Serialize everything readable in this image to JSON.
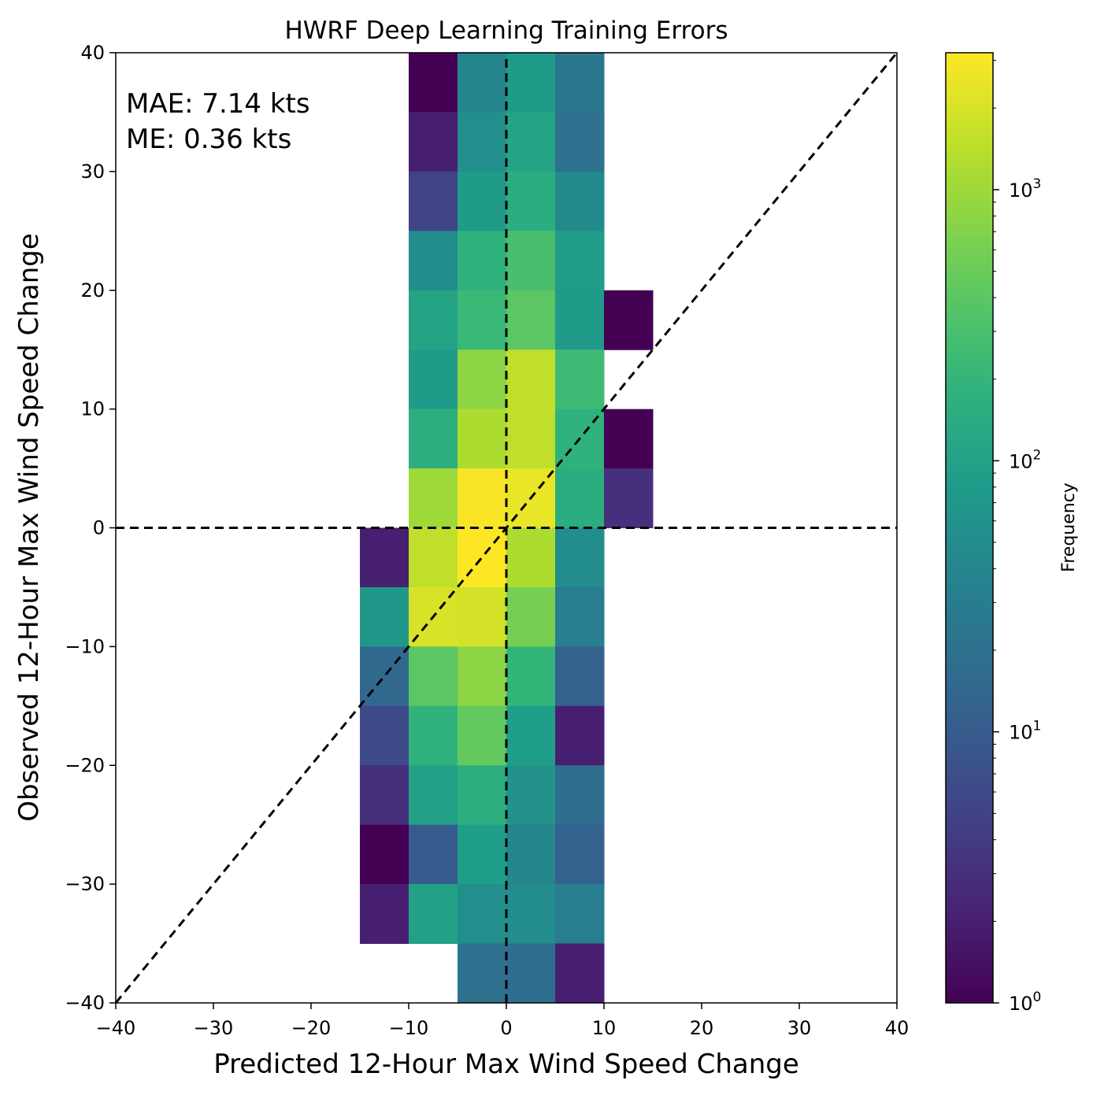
{
  "chart_data": {
    "type": "heatmap",
    "title": "HWRF Deep Learning Training Errors",
    "xlabel": "Predicted 12-Hour Max Wind Speed Change",
    "ylabel": "Observed 12-Hour Max Wind Speed Change",
    "xlim": [
      -40,
      40
    ],
    "ylim": [
      -40,
      40
    ],
    "xticks": [
      -40,
      -30,
      -20,
      -10,
      0,
      10,
      20,
      30,
      40
    ],
    "yticks": [
      -40,
      -30,
      -20,
      -10,
      0,
      10,
      20,
      30,
      40
    ],
    "xtick_labels": [
      "−40",
      "−30",
      "−20",
      "−10",
      "0",
      "10",
      "20",
      "30",
      "40"
    ],
    "ytick_labels": [
      "−40",
      "−30",
      "−20",
      "−10",
      "0",
      "10",
      "20",
      "30",
      "40"
    ],
    "grid": false,
    "reference_lines": [
      "y=0",
      "x=0",
      "y=x"
    ],
    "annotations": [
      "MAE:  7.14 kts",
      "ME:  0.36 kts"
    ],
    "colorbar": {
      "label": "Frequency",
      "scale": "log",
      "range": [
        1,
        3200
      ],
      "colormap": "viridis",
      "tick_exponents": [
        0,
        1,
        2,
        3
      ]
    },
    "bins": [
      {
        "x": [
          -10,
          -5
        ],
        "y": [
          35,
          40
        ],
        "freq": 1
      },
      {
        "x": [
          -5,
          0
        ],
        "y": [
          35,
          40
        ],
        "freq": 40
      },
      {
        "x": [
          0,
          5
        ],
        "y": [
          35,
          40
        ],
        "freq": 80
      },
      {
        "x": [
          5,
          10
        ],
        "y": [
          35,
          40
        ],
        "freq": 25
      },
      {
        "x": [
          -10,
          -5
        ],
        "y": [
          30,
          35
        ],
        "freq": 2
      },
      {
        "x": [
          -5,
          0
        ],
        "y": [
          30,
          35
        ],
        "freq": 55
      },
      {
        "x": [
          0,
          5
        ],
        "y": [
          30,
          35
        ],
        "freq": 110
      },
      {
        "x": [
          5,
          10
        ],
        "y": [
          30,
          35
        ],
        "freq": 20
      },
      {
        "x": [
          -10,
          -5
        ],
        "y": [
          25,
          30
        ],
        "freq": 5
      },
      {
        "x": [
          -5,
          0
        ],
        "y": [
          25,
          30
        ],
        "freq": 80
      },
      {
        "x": [
          0,
          5
        ],
        "y": [
          25,
          30
        ],
        "freq": 150
      },
      {
        "x": [
          5,
          10
        ],
        "y": [
          25,
          30
        ],
        "freq": 45
      },
      {
        "x": [
          -10,
          -5
        ],
        "y": [
          20,
          25
        ],
        "freq": 50
      },
      {
        "x": [
          -5,
          0
        ],
        "y": [
          20,
          25
        ],
        "freq": 180
      },
      {
        "x": [
          0,
          5
        ],
        "y": [
          20,
          25
        ],
        "freq": 300
      },
      {
        "x": [
          5,
          10
        ],
        "y": [
          20,
          25
        ],
        "freq": 85
      },
      {
        "x": [
          -10,
          -5
        ],
        "y": [
          15,
          20
        ],
        "freq": 110
      },
      {
        "x": [
          -5,
          0
        ],
        "y": [
          15,
          20
        ],
        "freq": 230
      },
      {
        "x": [
          0,
          5
        ],
        "y": [
          15,
          20
        ],
        "freq": 400
      },
      {
        "x": [
          5,
          10
        ],
        "y": [
          15,
          20
        ],
        "freq": 80
      },
      {
        "x": [
          10,
          15
        ],
        "y": [
          15,
          20
        ],
        "freq": 1
      },
      {
        "x": [
          -10,
          -5
        ],
        "y": [
          10,
          15
        ],
        "freq": 80
      },
      {
        "x": [
          -5,
          0
        ],
        "y": [
          10,
          15
        ],
        "freq": 800
      },
      {
        "x": [
          0,
          5
        ],
        "y": [
          10,
          15
        ],
        "freq": 1500
      },
      {
        "x": [
          5,
          10
        ],
        "y": [
          10,
          15
        ],
        "freq": 250
      },
      {
        "x": [
          -10,
          -5
        ],
        "y": [
          5,
          10
        ],
        "freq": 160
      },
      {
        "x": [
          -5,
          0
        ],
        "y": [
          5,
          10
        ],
        "freq": 1200
      },
      {
        "x": [
          0,
          5
        ],
        "y": [
          5,
          10
        ],
        "freq": 1500
      },
      {
        "x": [
          5,
          10
        ],
        "y": [
          5,
          10
        ],
        "freq": 180
      },
      {
        "x": [
          10,
          15
        ],
        "y": [
          5,
          10
        ],
        "freq": 1
      },
      {
        "x": [
          -10,
          -5
        ],
        "y": [
          0,
          5
        ],
        "freq": 1000
      },
      {
        "x": [
          -5,
          0
        ],
        "y": [
          0,
          5
        ],
        "freq": 3000
      },
      {
        "x": [
          0,
          5
        ],
        "y": [
          0,
          5
        ],
        "freq": 2500
      },
      {
        "x": [
          5,
          10
        ],
        "y": [
          0,
          5
        ],
        "freq": 150
      },
      {
        "x": [
          10,
          15
        ],
        "y": [
          0,
          5
        ],
        "freq": 3
      },
      {
        "x": [
          -15,
          -10
        ],
        "y": [
          -5,
          0
        ],
        "freq": 2
      },
      {
        "x": [
          -10,
          -5
        ],
        "y": [
          -5,
          0
        ],
        "freq": 1500
      },
      {
        "x": [
          -5,
          0
        ],
        "y": [
          -5,
          0
        ],
        "freq": 3200
      },
      {
        "x": [
          0,
          5
        ],
        "y": [
          -5,
          0
        ],
        "freq": 1200
      },
      {
        "x": [
          5,
          10
        ],
        "y": [
          -5,
          0
        ],
        "freq": 50
      },
      {
        "x": [
          -15,
          -10
        ],
        "y": [
          -10,
          -5
        ],
        "freq": 70
      },
      {
        "x": [
          -10,
          -5
        ],
        "y": [
          -10,
          -5
        ],
        "freq": 2000
      },
      {
        "x": [
          -5,
          0
        ],
        "y": [
          -10,
          -5
        ],
        "freq": 1900
      },
      {
        "x": [
          0,
          5
        ],
        "y": [
          -10,
          -5
        ],
        "freq": 600
      },
      {
        "x": [
          5,
          10
        ],
        "y": [
          -10,
          -5
        ],
        "freq": 30
      },
      {
        "x": [
          -15,
          -10
        ],
        "y": [
          -15,
          -10
        ],
        "freq": 15
      },
      {
        "x": [
          -10,
          -5
        ],
        "y": [
          -15,
          -10
        ],
        "freq": 400
      },
      {
        "x": [
          -5,
          0
        ],
        "y": [
          -15,
          -10
        ],
        "freq": 800
      },
      {
        "x": [
          0,
          5
        ],
        "y": [
          -15,
          -10
        ],
        "freq": 200
      },
      {
        "x": [
          5,
          10
        ],
        "y": [
          -15,
          -10
        ],
        "freq": 12
      },
      {
        "x": [
          -15,
          -10
        ],
        "y": [
          -20,
          -15
        ],
        "freq": 6
      },
      {
        "x": [
          -10,
          -5
        ],
        "y": [
          -20,
          -15
        ],
        "freq": 180
      },
      {
        "x": [
          -5,
          0
        ],
        "y": [
          -20,
          -15
        ],
        "freq": 450
      },
      {
        "x": [
          0,
          5
        ],
        "y": [
          -20,
          -15
        ],
        "freq": 90
      },
      {
        "x": [
          5,
          10
        ],
        "y": [
          -20,
          -15
        ],
        "freq": 2
      },
      {
        "x": [
          -15,
          -10
        ],
        "y": [
          -25,
          -20
        ],
        "freq": 3
      },
      {
        "x": [
          -10,
          -5
        ],
        "y": [
          -25,
          -20
        ],
        "freq": 100
      },
      {
        "x": [
          -5,
          0
        ],
        "y": [
          -25,
          -20
        ],
        "freq": 160
      },
      {
        "x": [
          0,
          5
        ],
        "y": [
          -25,
          -20
        ],
        "freq": 60
      },
      {
        "x": [
          5,
          10
        ],
        "y": [
          -25,
          -20
        ],
        "freq": 18
      },
      {
        "x": [
          -15,
          -10
        ],
        "y": [
          -30,
          -25
        ],
        "freq": 1
      },
      {
        "x": [
          -10,
          -5
        ],
        "y": [
          -30,
          -25
        ],
        "freq": 10
      },
      {
        "x": [
          -5,
          0
        ],
        "y": [
          -30,
          -25
        ],
        "freq": 90
      },
      {
        "x": [
          0,
          5
        ],
        "y": [
          -30,
          -25
        ],
        "freq": 40
      },
      {
        "x": [
          5,
          10
        ],
        "y": [
          -30,
          -25
        ],
        "freq": 12
      },
      {
        "x": [
          -15,
          -10
        ],
        "y": [
          -35,
          -30
        ],
        "freq": 2
      },
      {
        "x": [
          -10,
          -5
        ],
        "y": [
          -35,
          -30
        ],
        "freq": 100
      },
      {
        "x": [
          -5,
          0
        ],
        "y": [
          -35,
          -30
        ],
        "freq": 55
      },
      {
        "x": [
          0,
          5
        ],
        "y": [
          -35,
          -30
        ],
        "freq": 50
      },
      {
        "x": [
          5,
          10
        ],
        "y": [
          -35,
          -30
        ],
        "freq": 30
      },
      {
        "x": [
          -5,
          0
        ],
        "y": [
          -40,
          -35
        ],
        "freq": 20
      },
      {
        "x": [
          0,
          5
        ],
        "y": [
          -40,
          -35
        ],
        "freq": 18
      },
      {
        "x": [
          5,
          10
        ],
        "y": [
          -40,
          -35
        ],
        "freq": 2
      }
    ]
  }
}
